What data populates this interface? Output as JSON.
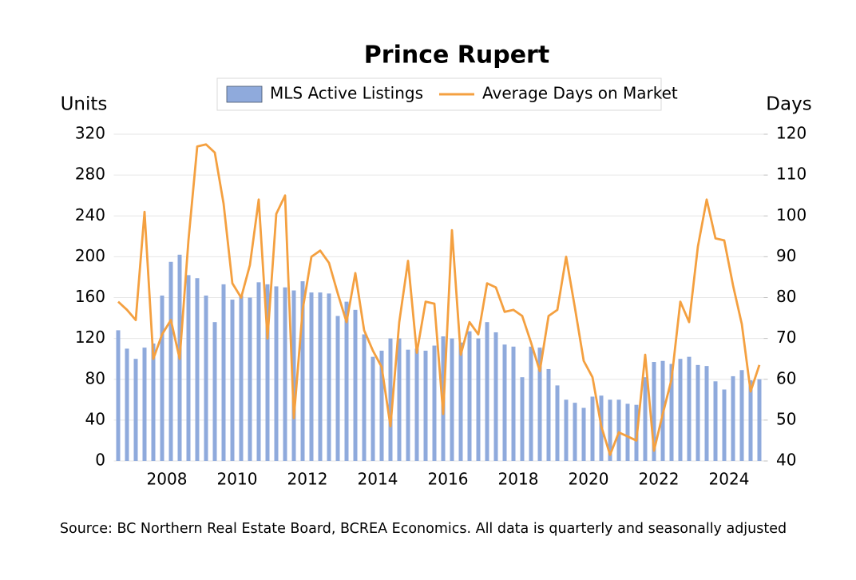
{
  "chart_data": {
    "type": "bar",
    "title": "Prince Rupert",
    "y_label": "Units",
    "y2_label": "Days",
    "source": "Source: BC Northern Real Estate Board, BCREA Economics. All data is quarterly and seasonally adjusted",
    "categories": [
      null,
      null,
      null,
      null,
      null,
      "2008",
      null,
      null,
      null,
      null,
      null,
      null,
      null,
      "2010",
      null,
      null,
      null,
      null,
      null,
      null,
      null,
      "2012",
      null,
      null,
      null,
      null,
      null,
      null,
      null,
      "2014",
      null,
      null,
      null,
      null,
      null,
      null,
      null,
      "2016",
      null,
      null,
      null,
      null,
      null,
      null,
      null,
      "2018",
      null,
      null,
      null,
      null,
      null,
      null,
      null,
      "2020",
      null,
      null,
      null,
      null,
      null,
      null,
      null,
      "2022",
      null,
      null,
      null,
      null,
      null,
      null,
      null,
      "2024",
      null,
      null,
      null,
      null
    ],
    "series": [
      {
        "name": "MLS Active Listings",
        "type": "bar",
        "color": "#8faadc",
        "axis": "y",
        "values": [
          128,
          110,
          100,
          111,
          115,
          162,
          195,
          202,
          182,
          179,
          162,
          136,
          173,
          158,
          162,
          160,
          175,
          173,
          171,
          170,
          167,
          176,
          165,
          165,
          164,
          142,
          156,
          148,
          124,
          102,
          108,
          120,
          120,
          109,
          110,
          108,
          113,
          122,
          120,
          116,
          127,
          120,
          136,
          126,
          114,
          112,
          82,
          112,
          111,
          90,
          74,
          60,
          57,
          52,
          63,
          64,
          60,
          60,
          56,
          55,
          82,
          97,
          98,
          95,
          100,
          102,
          94,
          93,
          78,
          70,
          83,
          89,
          79,
          80
        ]
      },
      {
        "name": "Average Days on Market",
        "type": "line",
        "color": "#f4a040",
        "axis": "y2",
        "values": [
          79,
          77,
          74.5,
          101,
          65,
          71,
          74.5,
          65,
          94,
          117,
          117.5,
          115.5,
          103,
          83.5,
          80,
          88,
          104,
          70,
          100.5,
          105,
          50.5,
          77,
          90,
          91.5,
          88.5,
          81,
          74,
          86,
          72,
          67,
          63,
          48.5,
          74,
          89,
          66.5,
          79,
          78.5,
          51.5,
          96.5,
          66,
          74,
          71,
          83.5,
          82.5,
          76.5,
          77,
          75.5,
          69,
          62,
          75.5,
          77,
          90,
          77.5,
          64.5,
          60.5,
          48.5,
          41.5,
          47,
          46,
          45,
          66,
          42.5,
          51.5,
          60,
          79,
          74,
          92.5,
          104,
          94.5,
          94,
          83,
          73.5,
          57,
          63.5
        ]
      }
    ],
    "ylim": [
      0,
      320
    ],
    "yticks": [
      0,
      40,
      80,
      120,
      160,
      200,
      240,
      280,
      320
    ],
    "y2lim": [
      40,
      120
    ],
    "y2ticks": [
      40,
      50,
      60,
      70,
      80,
      90,
      100,
      110,
      120
    ],
    "grid": true,
    "legend": "top"
  }
}
